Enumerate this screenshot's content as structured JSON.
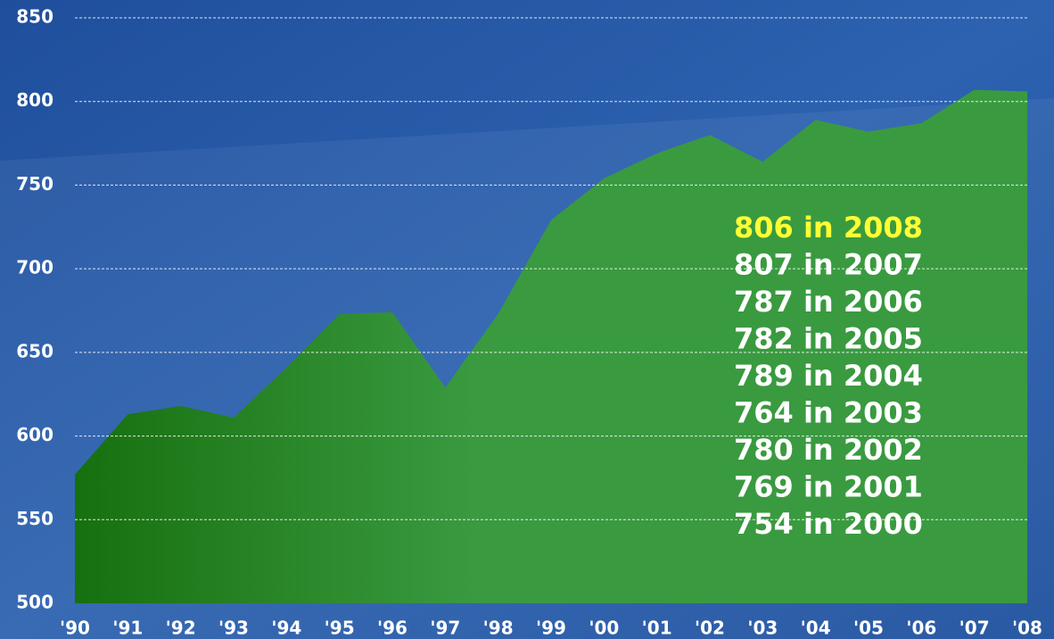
{
  "chart_data": {
    "type": "area",
    "categories": [
      "'90",
      "'91",
      "'92",
      "'93",
      "'94",
      "'95",
      "'96",
      "'97",
      "'98",
      "'99",
      "'00",
      "'01",
      "'02",
      "'03",
      "'04",
      "'05",
      "'06",
      "'07",
      "'08"
    ],
    "values": [
      577,
      613,
      618,
      611,
      641,
      673,
      674,
      629,
      673,
      729,
      754,
      769,
      780,
      764,
      789,
      782,
      787,
      807,
      806
    ],
    "color": "#3a9a40",
    "ylim": [
      500,
      850
    ],
    "yticks": [
      500,
      550,
      600,
      650,
      700,
      750,
      800,
      850
    ],
    "grid": true,
    "annotations": [
      {
        "text": "806 in 2008",
        "color": "#ffff33"
      },
      {
        "text": "807 in 2007",
        "color": "#ffffff"
      },
      {
        "text": "787 in 2006",
        "color": "#ffffff"
      },
      {
        "text": "782 in 2005",
        "color": "#ffffff"
      },
      {
        "text": "789 in 2004",
        "color": "#ffffff"
      },
      {
        "text": "764 in 2003",
        "color": "#ffffff"
      },
      {
        "text": "780 in 2002",
        "color": "#ffffff"
      },
      {
        "text": "769 in 2001",
        "color": "#ffffff"
      },
      {
        "text": "754 in 2000",
        "color": "#ffffff"
      }
    ]
  }
}
